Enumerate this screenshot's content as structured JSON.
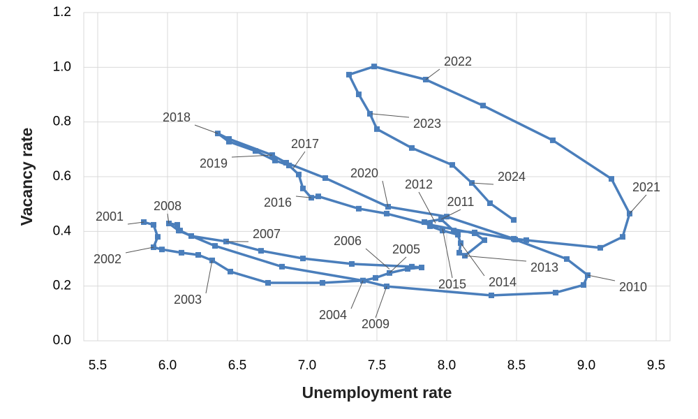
{
  "chart_data": {
    "type": "line",
    "x_label": "Unemployment rate",
    "y_label": "Vacancy rate",
    "xlim": [
      5.4,
      9.6
    ],
    "ylim": [
      0,
      1.2
    ],
    "xticks": [
      5.5,
      {
        "value": 6,
        "label": "6.0"
      },
      6.5,
      {
        "value": 7,
        "label": "7.0"
      },
      7.5,
      {
        "value": 8,
        "label": "8.0"
      },
      8.5,
      {
        "value": 9,
        "label": "9.0"
      },
      9.5
    ],
    "yticks": [
      {
        "value": 0,
        "label": "0.0"
      },
      0.2,
      0.4,
      0.6,
      0.8,
      {
        "value": 1,
        "label": "1.0"
      },
      1.2
    ],
    "grid": true,
    "x": [
      5.83,
      5.9,
      5.93,
      5.9,
      5.96,
      6.1,
      6.22,
      6.32,
      6.45,
      6.72,
      7.11,
      7.4,
      7.49,
      7.59,
      7.72,
      7.82,
      7.75,
      7.32,
      6.97,
      6.67,
      6.42,
      6.17,
      6.09,
      6.07,
      6.01,
      6.08,
      6.34,
      6.82,
      7.4,
      7.57,
      8.32,
      8.78,
      8.98,
      9.01,
      8.86,
      8.49,
      8.2,
      8.05,
      7.96,
      7.84,
      7.88,
      7.97,
      8.08,
      8.1,
      8.09,
      8.13,
      8.27,
      8.2,
      7.88,
      7.57,
      7.37,
      7.08,
      7.03,
      6.97,
      6.94,
      6.87,
      6.77,
      6.63,
      6.44,
      6.36,
      6.44,
      6.75,
      6.85,
      7.13,
      7.58,
      8.0,
      8.48,
      8.57,
      9.1,
      9.26,
      9.31,
      9.18,
      8.76,
      8.26,
      7.85,
      7.48,
      7.3,
      7.37,
      7.45,
      7.5,
      7.75,
      8.04,
      8.18,
      8.31,
      8.48
    ],
    "series": [
      {
        "color": "#4a7ebb",
        "values": [
          0.434,
          0.424,
          0.38,
          0.342,
          0.334,
          0.322,
          0.314,
          0.294,
          0.253,
          0.212,
          0.212,
          0.22,
          0.23,
          0.248,
          0.263,
          0.268,
          0.271,
          0.281,
          0.301,
          0.329,
          0.363,
          0.383,
          0.403,
          0.424,
          0.429,
          0.403,
          0.347,
          0.271,
          0.22,
          0.199,
          0.166,
          0.176,
          0.204,
          0.24,
          0.299,
          0.37,
          0.396,
          0.403,
          0.444,
          0.434,
          0.419,
          0.403,
          0.388,
          0.357,
          0.322,
          0.311,
          0.368,
          0.393,
          0.424,
          0.465,
          0.483,
          0.528,
          0.523,
          0.557,
          0.608,
          0.641,
          0.659,
          0.694,
          0.728,
          0.758,
          0.738,
          0.679,
          0.651,
          0.595,
          0.49,
          0.454,
          0.373,
          0.368,
          0.34,
          0.38,
          0.465,
          0.592,
          0.733,
          0.86,
          0.955,
          1.003,
          0.973,
          0.901,
          0.83,
          0.774,
          0.705,
          0.643,
          0.577,
          0.503,
          0.442
        ]
      }
    ],
    "annotations": [
      {
        "text": "2001",
        "x": 5.83,
        "y": 0.434
      },
      {
        "text": "2002",
        "x": 5.9,
        "y": 0.342
      },
      {
        "text": "2003",
        "x": 6.32,
        "y": 0.294
      },
      {
        "text": "2004",
        "x": 7.4,
        "y": 0.22
      },
      {
        "text": "2005",
        "x": 7.59,
        "y": 0.248
      },
      {
        "text": "2006",
        "x": 7.59,
        "y": 0.262
      },
      {
        "text": "2007",
        "x": 6.42,
        "y": 0.363
      },
      {
        "text": "2008",
        "x": 6.01,
        "y": 0.429
      },
      {
        "text": "2009",
        "x": 7.57,
        "y": 0.199
      },
      {
        "text": "2010",
        "x": 9.01,
        "y": 0.24
      },
      {
        "text": "2011",
        "x": 7.96,
        "y": 0.444
      },
      {
        "text": "2012",
        "x": 7.92,
        "y": 0.43
      },
      {
        "text": "2013",
        "x": 8.13,
        "y": 0.311
      },
      {
        "text": "2014",
        "x": 8.1,
        "y": 0.357
      },
      {
        "text": "2015",
        "x": 7.97,
        "y": 0.41
      },
      {
        "text": "2016",
        "x": 7.03,
        "y": 0.523
      },
      {
        "text": "2017",
        "x": 6.9,
        "y": 0.63
      },
      {
        "text": "2018",
        "x": 6.36,
        "y": 0.758
      },
      {
        "text": "2019",
        "x": 6.75,
        "y": 0.679
      },
      {
        "text": "2020",
        "x": 7.58,
        "y": 0.49
      },
      {
        "text": "2021",
        "x": 9.31,
        "y": 0.465
      },
      {
        "text": "2022",
        "x": 7.85,
        "y": 0.955
      },
      {
        "text": "2023",
        "x": 7.46,
        "y": 0.83
      },
      {
        "text": "2024",
        "x": 8.18,
        "y": 0.577
      }
    ]
  }
}
